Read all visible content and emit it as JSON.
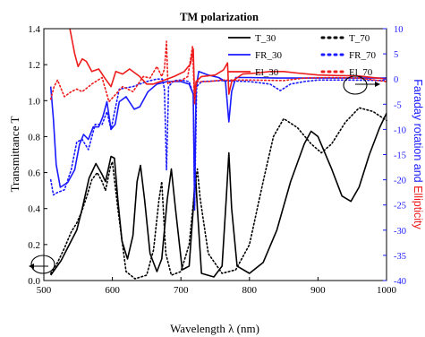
{
  "chart_data": {
    "type": "line",
    "title": "TM polarization",
    "xlabel": "Wavelength λ (nm)",
    "ylabel_left": "Transmittance T",
    "ylabel_right": {
      "part1": "Faraday rotation and ",
      "part2": "Ellipticity",
      "part1_color": "#1a1aff",
      "part2_color": "#ee1c1c"
    },
    "xlim": [
      500,
      1000
    ],
    "ylim_left": [
      0.0,
      1.4
    ],
    "ylim_right": [
      -40,
      10
    ],
    "xticks": [
      500,
      600,
      700,
      800,
      900,
      1000
    ],
    "yticks_left": [
      0.0,
      0.2,
      0.4,
      0.6,
      0.8,
      1.0,
      1.2,
      1.4
    ],
    "yticks_right": [
      10,
      5,
      0,
      -5,
      -10,
      -15,
      -20,
      -25,
      -30,
      -35,
      -40
    ],
    "grid": false,
    "legend_position": "top-right",
    "series": [
      {
        "name": "T_30",
        "axis": "left",
        "color": "#000000",
        "style": "solid",
        "points": [
          [
            510,
            0.03
          ],
          [
            525,
            0.11
          ],
          [
            540,
            0.22
          ],
          [
            548,
            0.28
          ],
          [
            556,
            0.4
          ],
          [
            566,
            0.57
          ],
          [
            576,
            0.65
          ],
          [
            585,
            0.59
          ],
          [
            590,
            0.55
          ],
          [
            598,
            0.69
          ],
          [
            603,
            0.68
          ],
          [
            608,
            0.45
          ],
          [
            614,
            0.22
          ],
          [
            622,
            0.12
          ],
          [
            630,
            0.25
          ],
          [
            636,
            0.55
          ],
          [
            641,
            0.64
          ],
          [
            647,
            0.45
          ],
          [
            655,
            0.15
          ],
          [
            665,
            0.05
          ],
          [
            672,
            0.12
          ],
          [
            680,
            0.45
          ],
          [
            686,
            0.62
          ],
          [
            692,
            0.4
          ],
          [
            702,
            0.06
          ],
          [
            712,
            0.08
          ],
          [
            718,
            0.4
          ],
          [
            721,
            0.61
          ],
          [
            724,
            0.4
          ],
          [
            730,
            0.04
          ],
          [
            748,
            0.02
          ],
          [
            760,
            0.08
          ],
          [
            766,
            0.45
          ],
          [
            770,
            0.71
          ],
          [
            774,
            0.4
          ],
          [
            782,
            0.08
          ],
          [
            800,
            0.04
          ],
          [
            820,
            0.1
          ],
          [
            840,
            0.28
          ],
          [
            860,
            0.55
          ],
          [
            880,
            0.76
          ],
          [
            890,
            0.83
          ],
          [
            900,
            0.8
          ],
          [
            920,
            0.62
          ],
          [
            935,
            0.47
          ],
          [
            948,
            0.44
          ],
          [
            960,
            0.52
          ],
          [
            975,
            0.7
          ],
          [
            990,
            0.85
          ],
          [
            1000,
            0.93
          ]
        ]
      },
      {
        "name": "T_70",
        "axis": "left",
        "color": "#000000",
        "style": "dotted",
        "points": [
          [
            510,
            0.04
          ],
          [
            520,
            0.1
          ],
          [
            530,
            0.18
          ],
          [
            540,
            0.27
          ],
          [
            548,
            0.32
          ],
          [
            555,
            0.38
          ],
          [
            562,
            0.46
          ],
          [
            570,
            0.56
          ],
          [
            578,
            0.6
          ],
          [
            585,
            0.55
          ],
          [
            590,
            0.5
          ],
          [
            597,
            0.63
          ],
          [
            600,
            0.66
          ],
          [
            608,
            0.4
          ],
          [
            620,
            0.05
          ],
          [
            633,
            0.01
          ],
          [
            650,
            0.03
          ],
          [
            660,
            0.17
          ],
          [
            668,
            0.45
          ],
          [
            672,
            0.55
          ],
          [
            678,
            0.15
          ],
          [
            686,
            0.03
          ],
          [
            700,
            0.05
          ],
          [
            712,
            0.2
          ],
          [
            720,
            0.5
          ],
          [
            724,
            0.62
          ],
          [
            728,
            0.46
          ],
          [
            740,
            0.15
          ],
          [
            760,
            0.04
          ],
          [
            780,
            0.06
          ],
          [
            800,
            0.2
          ],
          [
            820,
            0.55
          ],
          [
            835,
            0.8
          ],
          [
            850,
            0.9
          ],
          [
            870,
            0.85
          ],
          [
            890,
            0.76
          ],
          [
            905,
            0.71
          ],
          [
            920,
            0.76
          ],
          [
            940,
            0.88
          ],
          [
            960,
            0.96
          ],
          [
            980,
            0.94
          ],
          [
            1000,
            0.89
          ]
        ]
      },
      {
        "name": "FR_30",
        "axis": "right",
        "color": "#1a1aff",
        "style": "solid",
        "points": [
          [
            510,
            -1.5
          ],
          [
            514,
            -8
          ],
          [
            518,
            -17
          ],
          [
            524,
            -21.5
          ],
          [
            535,
            -20.5
          ],
          [
            545,
            -18
          ],
          [
            552,
            -13
          ],
          [
            558,
            -11
          ],
          [
            565,
            -12
          ],
          [
            572,
            -9.5
          ],
          [
            580,
            -9.5
          ],
          [
            586,
            -7.5
          ],
          [
            592,
            -4.5
          ],
          [
            598,
            -10
          ],
          [
            604,
            -9
          ],
          [
            610,
            -4.5
          ],
          [
            620,
            -3.5
          ],
          [
            632,
            -6
          ],
          [
            640,
            -5.5
          ],
          [
            652,
            -2.5
          ],
          [
            665,
            -1
          ],
          [
            680,
            -0.5
          ],
          [
            700,
            -0.5
          ],
          [
            712,
            -1
          ],
          [
            718,
            -3
          ],
          [
            720,
            -25
          ],
          [
            722,
            -2
          ],
          [
            726,
            1.5
          ],
          [
            740,
            0.8
          ],
          [
            755,
            0.3
          ],
          [
            765,
            -0.5
          ],
          [
            770,
            -8.5
          ],
          [
            774,
            -2.5
          ],
          [
            780,
            0.3
          ],
          [
            800,
            0.3
          ],
          [
            840,
            0.2
          ],
          [
            900,
            0.2
          ],
          [
            950,
            0.2
          ],
          [
            1000,
            0.2
          ]
        ]
      },
      {
        "name": "FR_70",
        "axis": "right",
        "color": "#1a1aff",
        "style": "dotted",
        "points": [
          [
            510,
            -20
          ],
          [
            514,
            -23
          ],
          [
            520,
            -22.5
          ],
          [
            530,
            -22
          ],
          [
            540,
            -18
          ],
          [
            548,
            -12.5
          ],
          [
            556,
            -12
          ],
          [
            565,
            -14
          ],
          [
            575,
            -9
          ],
          [
            585,
            -9
          ],
          [
            592,
            -6.5
          ],
          [
            598,
            -10
          ],
          [
            610,
            -2
          ],
          [
            630,
            -1.5
          ],
          [
            650,
            -0.5
          ],
          [
            665,
            0
          ],
          [
            673,
            0
          ],
          [
            676,
            -2
          ],
          [
            679,
            -18
          ],
          [
            682,
            -1.5
          ],
          [
            690,
            -0.3
          ],
          [
            700,
            -0.2
          ],
          [
            712,
            -0.5
          ],
          [
            718,
            -3
          ],
          [
            720,
            -26
          ],
          [
            723,
            -1.5
          ],
          [
            730,
            -0.5
          ],
          [
            760,
            -0.3
          ],
          [
            800,
            -0.5
          ],
          [
            830,
            -1
          ],
          [
            845,
            -2.3
          ],
          [
            860,
            -1
          ],
          [
            880,
            -0.5
          ],
          [
            900,
            -0.2
          ],
          [
            950,
            -0.2
          ],
          [
            1000,
            -0.3
          ]
        ]
      },
      {
        "name": "El_30",
        "axis": "right",
        "color": "#ee1c1c",
        "style": "solid",
        "points": [
          [
            538,
            10
          ],
          [
            545,
            5
          ],
          [
            550,
            2.5
          ],
          [
            556,
            4
          ],
          [
            562,
            3.5
          ],
          [
            570,
            1.5
          ],
          [
            580,
            2
          ],
          [
            590,
            0
          ],
          [
            598,
            -1.5
          ],
          [
            605,
            1.5
          ],
          [
            615,
            1
          ],
          [
            625,
            2
          ],
          [
            640,
            0.5
          ],
          [
            650,
            -1
          ],
          [
            660,
            -1
          ],
          [
            670,
            -0.5
          ],
          [
            690,
            0.5
          ],
          [
            705,
            1.5
          ],
          [
            714,
            3
          ],
          [
            718,
            6
          ],
          [
            720,
            -4
          ],
          [
            722,
            -0.5
          ],
          [
            730,
            0.5
          ],
          [
            750,
            0.8
          ],
          [
            762,
            1.8
          ],
          [
            768,
            3.2
          ],
          [
            770,
            -3
          ],
          [
            774,
            -0.5
          ],
          [
            790,
            1
          ],
          [
            810,
            1.2
          ],
          [
            830,
            1.5
          ],
          [
            850,
            1.5
          ],
          [
            870,
            1.2
          ],
          [
            900,
            0.8
          ],
          [
            930,
            0.7
          ],
          [
            960,
            0.6
          ],
          [
            1000,
            0
          ]
        ]
      },
      {
        "name": "El_70",
        "axis": "right",
        "color": "#ee1c1c",
        "style": "dotted",
        "points": [
          [
            510,
            -4
          ],
          [
            515,
            -1.5
          ],
          [
            520,
            -0.2
          ],
          [
            530,
            -3.5
          ],
          [
            540,
            -2.5
          ],
          [
            548,
            -2
          ],
          [
            556,
            -2.5
          ],
          [
            570,
            -1
          ],
          [
            585,
            0.3
          ],
          [
            595,
            -4.5
          ],
          [
            605,
            -3
          ],
          [
            615,
            -1.5
          ],
          [
            630,
            -2.5
          ],
          [
            645,
            0.5
          ],
          [
            655,
            0.2
          ],
          [
            665,
            2.5
          ],
          [
            672,
            0.5
          ],
          [
            676,
            2
          ],
          [
            679,
            7.5
          ],
          [
            681,
            -1
          ],
          [
            686,
            -0.5
          ],
          [
            700,
            -0.3
          ],
          [
            710,
            0.5
          ],
          [
            717,
            6.5
          ],
          [
            720,
            -5
          ],
          [
            723,
            -0.5
          ],
          [
            740,
            -0.5
          ],
          [
            760,
            -0.2
          ],
          [
            800,
            -0.2
          ],
          [
            850,
            -0.3
          ],
          [
            880,
            0.2
          ],
          [
            920,
            0.3
          ],
          [
            960,
            0.2
          ],
          [
            1000,
            -0.5
          ]
        ]
      }
    ]
  }
}
